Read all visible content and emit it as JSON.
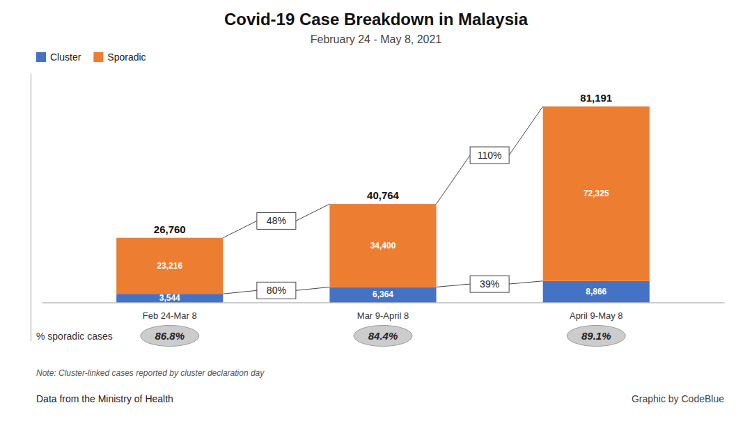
{
  "chart_data": {
    "type": "bar",
    "stacked": true,
    "data_labels": true,
    "tick_labels": "x",
    "legend": "upper left",
    "title": "Covid-19 Case Breakdown in Malaysia",
    "subtitle": "February 24 - May 8, 2021",
    "categories": [
      "Feb 24-Mar 8",
      "Mar 9-April 8",
      "April 9-May 8"
    ],
    "series": [
      {
        "name": "Cluster",
        "color": "#4472C4",
        "values": [
          3544,
          6364,
          8866
        ],
        "value_labels": [
          "3,544",
          "6,364",
          "8,866"
        ],
        "growth": {
          "values": [
            80,
            39
          ],
          "value_labels": [
            "80%",
            "39%"
          ]
        }
      },
      {
        "name": "Sporadic",
        "color": "#ED7D31",
        "values": [
          23216,
          34400,
          72325
        ],
        "value_labels": [
          "23,216",
          "34,400",
          "72,325"
        ],
        "growth": {
          "values": [
            48,
            110
          ],
          "value_labels": [
            "48%",
            "110%"
          ]
        }
      }
    ],
    "totals": {
      "values": [
        26760,
        40764,
        81191
      ],
      "value_labels": [
        "26,760",
        "40,764",
        "81,191"
      ]
    },
    "sporadic_share": {
      "label": "% sporadic cases",
      "values": [
        86.8,
        84.4,
        89.1
      ],
      "value_labels": [
        "86.8%",
        "84.4%",
        "89.1%"
      ]
    },
    "ylim": [
      -16000,
      95000
    ],
    "note": "Note: Cluster-linked cases reported by cluster declaration day",
    "source": "Data from the Ministry of Health",
    "credit": "Graphic by CodeBlue"
  }
}
